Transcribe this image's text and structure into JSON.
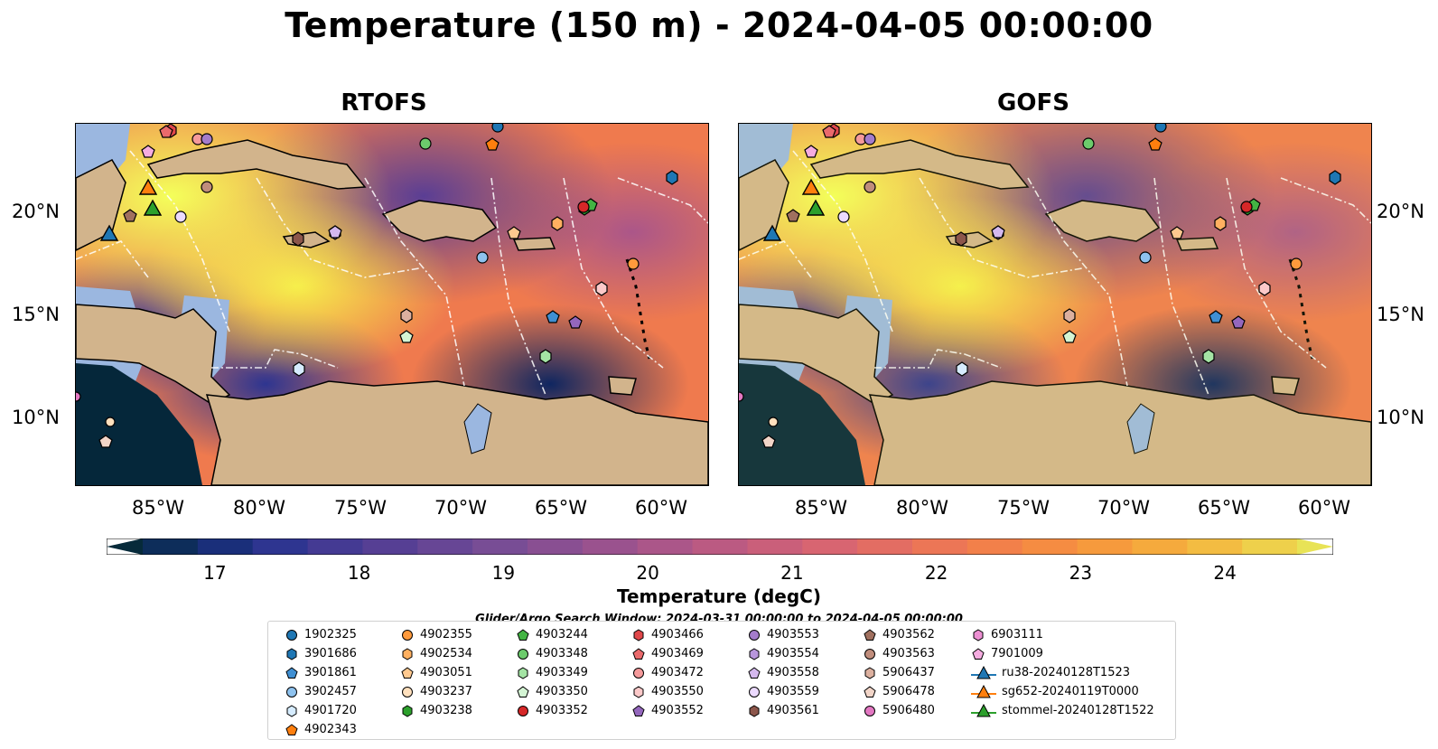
{
  "title": "Temperature (150 m) - 2024-04-05 00:00:00",
  "maps": [
    {
      "title": "RTOFS"
    },
    {
      "title": "GOFS"
    }
  ],
  "axes": {
    "x_ticks": [
      "85°W",
      "80°W",
      "75°W",
      "70°W",
      "65°W",
      "60°W"
    ],
    "y_ticks": [
      "20°N",
      "15°N",
      "10°N"
    ]
  },
  "colorbar": {
    "label": "Temperature (degC)",
    "ticks": [
      "17",
      "18",
      "19",
      "20",
      "21",
      "22",
      "23",
      "24"
    ],
    "colors": [
      "#062a3a",
      "#0d2d5a",
      "#1a2f7a",
      "#2e3590",
      "#443a93",
      "#563f94",
      "#674695",
      "#784d95",
      "#894f92",
      "#9a528e",
      "#ab5689",
      "#bb5a82",
      "#ca5f7a",
      "#d86571",
      "#e36d63",
      "#ec7656",
      "#f2804a",
      "#f58c42",
      "#f69a3d",
      "#f5aa3d",
      "#f3bc42",
      "#eed04b",
      "#e8e356"
    ]
  },
  "search_window": "Glider/Argo Search Window: 2024-03-31 00:00:00 to 2024-04-05 00:00:00",
  "legend": {
    "columns": [
      [
        {
          "label": "1902325",
          "marker": "circle",
          "color": "#1f77b4"
        },
        {
          "label": "3901686",
          "marker": "hexagon",
          "color": "#1f77b4"
        },
        {
          "label": "3901861",
          "marker": "pentagon",
          "color": "#3f8fd2"
        },
        {
          "label": "3902457",
          "marker": "circle",
          "color": "#8ec2ee"
        },
        {
          "label": "4901720",
          "marker": "hexagon",
          "color": "#d6ecff"
        },
        {
          "label": "4902343",
          "marker": "pentagon",
          "color": "#ff7f0e"
        }
      ],
      [
        {
          "label": "4902355",
          "marker": "circle",
          "color": "#ff9a3c"
        },
        {
          "label": "4902534",
          "marker": "hexagon",
          "color": "#ffb060"
        },
        {
          "label": "4903051",
          "marker": "pentagon",
          "color": "#ffc98f"
        },
        {
          "label": "4903237",
          "marker": "circle",
          "color": "#ffe0bd"
        },
        {
          "label": "4903238",
          "marker": "hexagon",
          "color": "#2ca02c"
        }
      ],
      [
        {
          "label": "4903244",
          "marker": "pentagon",
          "color": "#43b443"
        },
        {
          "label": "4903348",
          "marker": "circle",
          "color": "#6ccb6c"
        },
        {
          "label": "4903349",
          "marker": "hexagon",
          "color": "#a4e4a4"
        },
        {
          "label": "4903350",
          "marker": "pentagon",
          "color": "#d4f5d4"
        },
        {
          "label": "4903352",
          "marker": "circle",
          "color": "#d62728"
        }
      ],
      [
        {
          "label": "4903466",
          "marker": "hexagon",
          "color": "#e0474a"
        },
        {
          "label": "4903469",
          "marker": "pentagon",
          "color": "#ea6a6c"
        },
        {
          "label": "4903472",
          "marker": "circle",
          "color": "#f59a9b"
        },
        {
          "label": "4903550",
          "marker": "hexagon",
          "color": "#fcc9c9"
        },
        {
          "label": "4903552",
          "marker": "pentagon",
          "color": "#9467bd"
        }
      ],
      [
        {
          "label": "4903553",
          "marker": "circle",
          "color": "#a47ccb"
        },
        {
          "label": "4903554",
          "marker": "hexagon",
          "color": "#b896dc"
        },
        {
          "label": "4903558",
          "marker": "pentagon",
          "color": "#d4b8ee"
        },
        {
          "label": "4903559",
          "marker": "circle",
          "color": "#ecdaff"
        },
        {
          "label": "4903561",
          "marker": "hexagon",
          "color": "#8c564b"
        }
      ],
      [
        {
          "label": "4903562",
          "marker": "pentagon",
          "color": "#a0705f"
        },
        {
          "label": "4903563",
          "marker": "circle",
          "color": "#c08d7c"
        },
        {
          "label": "5906437",
          "marker": "hexagon",
          "color": "#dcb09f"
        },
        {
          "label": "5906478",
          "marker": "pentagon",
          "color": "#f2d5c8"
        },
        {
          "label": "5906480",
          "marker": "circle",
          "color": "#e377c2"
        }
      ],
      [
        {
          "label": "6903111",
          "marker": "hexagon",
          "color": "#ec8fd2"
        },
        {
          "label": "7901009",
          "marker": "pentagon",
          "color": "#f5ace0"
        },
        {
          "label": "ru38-20240128T1523",
          "marker": "triangle",
          "color": "#1f77b4"
        },
        {
          "label": "sg652-20240119T0000",
          "marker": "triangle",
          "color": "#ff7f0e"
        },
        {
          "label": "stommel-20240128T1522",
          "marker": "triangle",
          "color": "#2ca02c"
        }
      ]
    ]
  }
}
